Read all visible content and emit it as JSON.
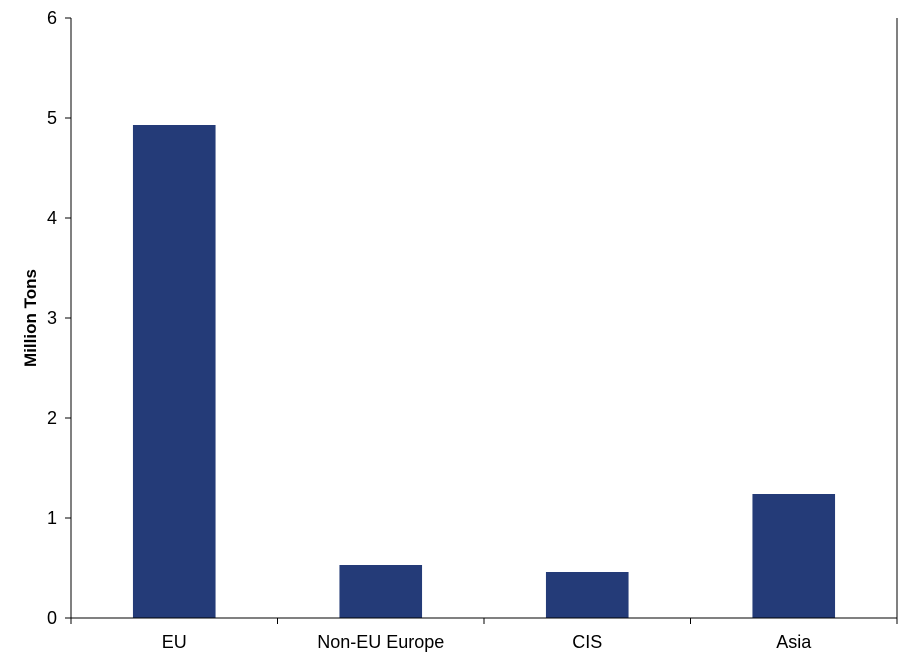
{
  "chart_data": {
    "type": "bar",
    "title": "",
    "xlabel": "",
    "ylabel": "Million Tons",
    "categories": [
      "EU",
      "Non-EU Europe",
      "CIS",
      "Asia"
    ],
    "values": [
      4.93,
      0.53,
      0.46,
      1.24
    ],
    "ylim": [
      0,
      6
    ],
    "yticks": [
      "0",
      "1",
      "2",
      "3",
      "4",
      "5",
      "6"
    ],
    "grid": false,
    "legend": "none",
    "bar_color": "#243b78"
  }
}
